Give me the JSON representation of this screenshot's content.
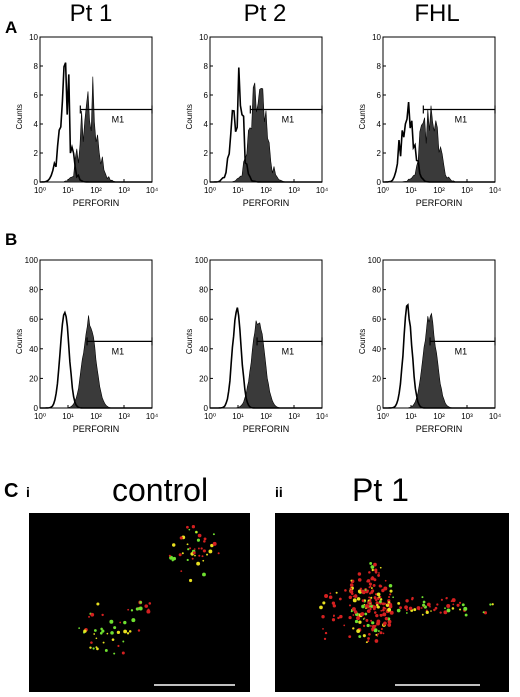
{
  "columns": [
    "Pt 1",
    "Pt 2",
    "FHL"
  ],
  "panels": {
    "A": {
      "label": "A",
      "y_ticks": [
        "10",
        "8",
        "6",
        "4",
        "2",
        "0"
      ],
      "y_label": "Counts",
      "x_ticks": [
        "10⁰",
        "10¹",
        "10²",
        "10³",
        "10⁴"
      ],
      "x_label": "PERFORIN",
      "marker": "M1"
    },
    "B": {
      "label": "B",
      "y_ticks": [
        "100",
        "80",
        "60",
        "40",
        "20",
        "0"
      ],
      "y_label": "Counts",
      "x_ticks": [
        "10⁰",
        "10¹",
        "10²",
        "10³",
        "10⁴"
      ],
      "x_label": "PERFORIN",
      "marker": "M1"
    },
    "C": {
      "label": "C",
      "images": [
        {
          "roman": "i",
          "title": "control"
        },
        {
          "roman": "ii",
          "title": "Pt 1"
        }
      ]
    }
  },
  "colors": {
    "filled": "#3a3a3a",
    "outline": "#000000",
    "red_dots": "#d42020",
    "green_dots": "#6fe030",
    "yellow_dots": "#e8e020"
  }
}
